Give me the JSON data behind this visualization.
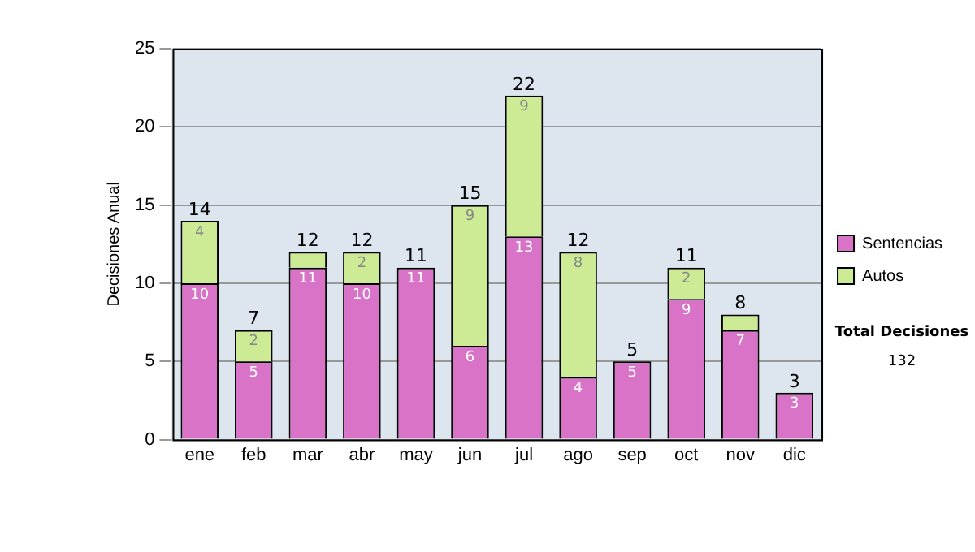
{
  "chart_data": {
    "type": "bar",
    "stacked": true,
    "ylabel": "Decisiones Anual",
    "categories": [
      "ene",
      "feb",
      "mar",
      "abr",
      "may",
      "jun",
      "jul",
      "ago",
      "sep",
      "oct",
      "nov",
      "dic"
    ],
    "series": [
      {
        "name": "Sentencias",
        "color": "#d873c8",
        "values": [
          10,
          5,
          11,
          10,
          11,
          6,
          13,
          4,
          5,
          9,
          7,
          3
        ],
        "value_labels": [
          "10",
          "5",
          "11",
          "10",
          "11",
          "6",
          "13",
          "4",
          "5",
          "9",
          "7",
          "3"
        ]
      },
      {
        "name": "Autos",
        "color": "#cceb94",
        "values": [
          4,
          2,
          1,
          2,
          0,
          9,
          9,
          8,
          0,
          2,
          1,
          0
        ],
        "value_labels": [
          "4",
          "2",
          null,
          "2",
          null,
          "9",
          "9",
          "8",
          null,
          "2",
          null,
          null
        ]
      }
    ],
    "totals": [
      "14",
      "7",
      "12",
      "12",
      "11",
      "15",
      "22",
      "12",
      "5",
      "11",
      "8",
      "3"
    ],
    "ylim": [
      0,
      25
    ],
    "yticks": [
      0,
      5,
      10,
      15,
      20,
      25
    ],
    "grid": "y",
    "legend": "right",
    "annotations": [
      "Total Decisiones",
      "132"
    ]
  }
}
